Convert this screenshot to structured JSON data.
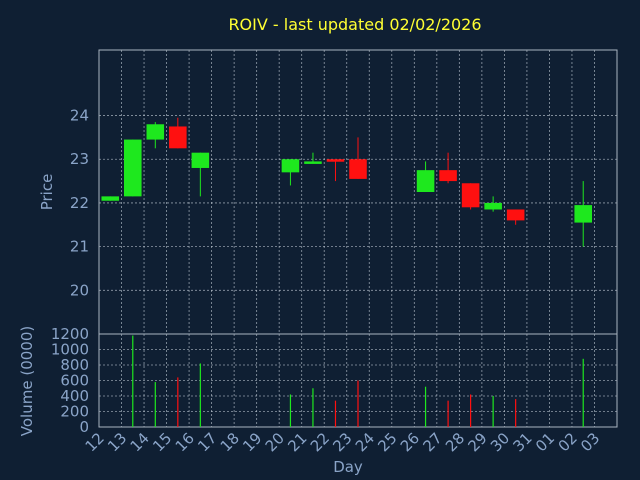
{
  "chart_data": [
    {
      "type": "candlestick",
      "title": "ROIV - last updated 02/02/2026",
      "ylabel": "Price",
      "ylim": [
        19.0,
        25.5
      ],
      "yticks": [
        20,
        21,
        22,
        23,
        24
      ],
      "grid": true,
      "days": [
        "12",
        "13",
        "14",
        "15",
        "16",
        "17",
        "18",
        "19",
        "20",
        "21",
        "22",
        "23",
        "24",
        "25",
        "26",
        "27",
        "28",
        "29",
        "30",
        "31",
        "01",
        "02",
        "03"
      ],
      "candles": [
        {
          "day": "12",
          "open": 22.05,
          "high": 22.15,
          "low": 22.05,
          "close": 22.15
        },
        {
          "day": "13",
          "open": 22.15,
          "high": 23.45,
          "low": 22.15,
          "close": 23.45
        },
        {
          "day": "14",
          "open": 23.45,
          "high": 23.85,
          "low": 23.25,
          "close": 23.8
        },
        {
          "day": "15",
          "open": 23.75,
          "high": 23.95,
          "low": 23.25,
          "close": 23.25
        },
        {
          "day": "16",
          "open": 22.8,
          "high": 23.15,
          "low": 22.15,
          "close": 23.15
        },
        {
          "day": "20",
          "open": 22.7,
          "high": 23.0,
          "low": 22.4,
          "close": 23.0
        },
        {
          "day": "21",
          "open": 22.9,
          "high": 23.15,
          "low": 22.9,
          "close": 22.95
        },
        {
          "day": "22",
          "open": 23.0,
          "high": 23.0,
          "low": 22.5,
          "close": 22.95
        },
        {
          "day": "23",
          "open": 23.0,
          "high": 23.5,
          "low": 22.55,
          "close": 22.55
        },
        {
          "day": "26",
          "open": 22.25,
          "high": 22.95,
          "low": 22.25,
          "close": 22.75
        },
        {
          "day": "27",
          "open": 22.75,
          "high": 23.15,
          "low": 22.45,
          "close": 22.5
        },
        {
          "day": "28",
          "open": 22.45,
          "high": 22.45,
          "low": 21.85,
          "close": 21.9
        },
        {
          "day": "29",
          "open": 21.85,
          "high": 22.15,
          "low": 21.8,
          "close": 22.0
        },
        {
          "day": "30",
          "open": 21.85,
          "high": 21.85,
          "low": 21.5,
          "close": 21.6
        },
        {
          "day": "02",
          "open": 21.55,
          "high": 22.5,
          "low": 21.0,
          "close": 21.95
        }
      ]
    },
    {
      "type": "bar",
      "ylabel": "Volume (0000)",
      "xlabel": "Day",
      "ylim": [
        0,
        1200
      ],
      "yticks": [
        0,
        200,
        400,
        600,
        800,
        1000,
        1200
      ],
      "grid": true,
      "volumes": [
        {
          "day": "12",
          "value": 0,
          "direction": "up"
        },
        {
          "day": "13",
          "value": 1180,
          "direction": "up"
        },
        {
          "day": "14",
          "value": 580,
          "direction": "up"
        },
        {
          "day": "15",
          "value": 640,
          "direction": "down"
        },
        {
          "day": "16",
          "value": 820,
          "direction": "up"
        },
        {
          "day": "20",
          "value": 420,
          "direction": "up"
        },
        {
          "day": "21",
          "value": 500,
          "direction": "up"
        },
        {
          "day": "22",
          "value": 340,
          "direction": "down"
        },
        {
          "day": "23",
          "value": 600,
          "direction": "down"
        },
        {
          "day": "26",
          "value": 520,
          "direction": "up"
        },
        {
          "day": "27",
          "value": 340,
          "direction": "down"
        },
        {
          "day": "28",
          "value": 420,
          "direction": "down"
        },
        {
          "day": "29",
          "value": 400,
          "direction": "up"
        },
        {
          "day": "30",
          "value": 360,
          "direction": "down"
        },
        {
          "day": "02",
          "value": 880,
          "direction": "up"
        }
      ]
    }
  ],
  "colors": {
    "background": "#0f1f33",
    "title": "#ffff33",
    "axis_text": "#8aa4c8",
    "tick_text": "#8aa4c8",
    "up": "#1ee81e",
    "down": "#ff1010",
    "grid": "#c8d2dc",
    "frame": "#aab4c0"
  }
}
